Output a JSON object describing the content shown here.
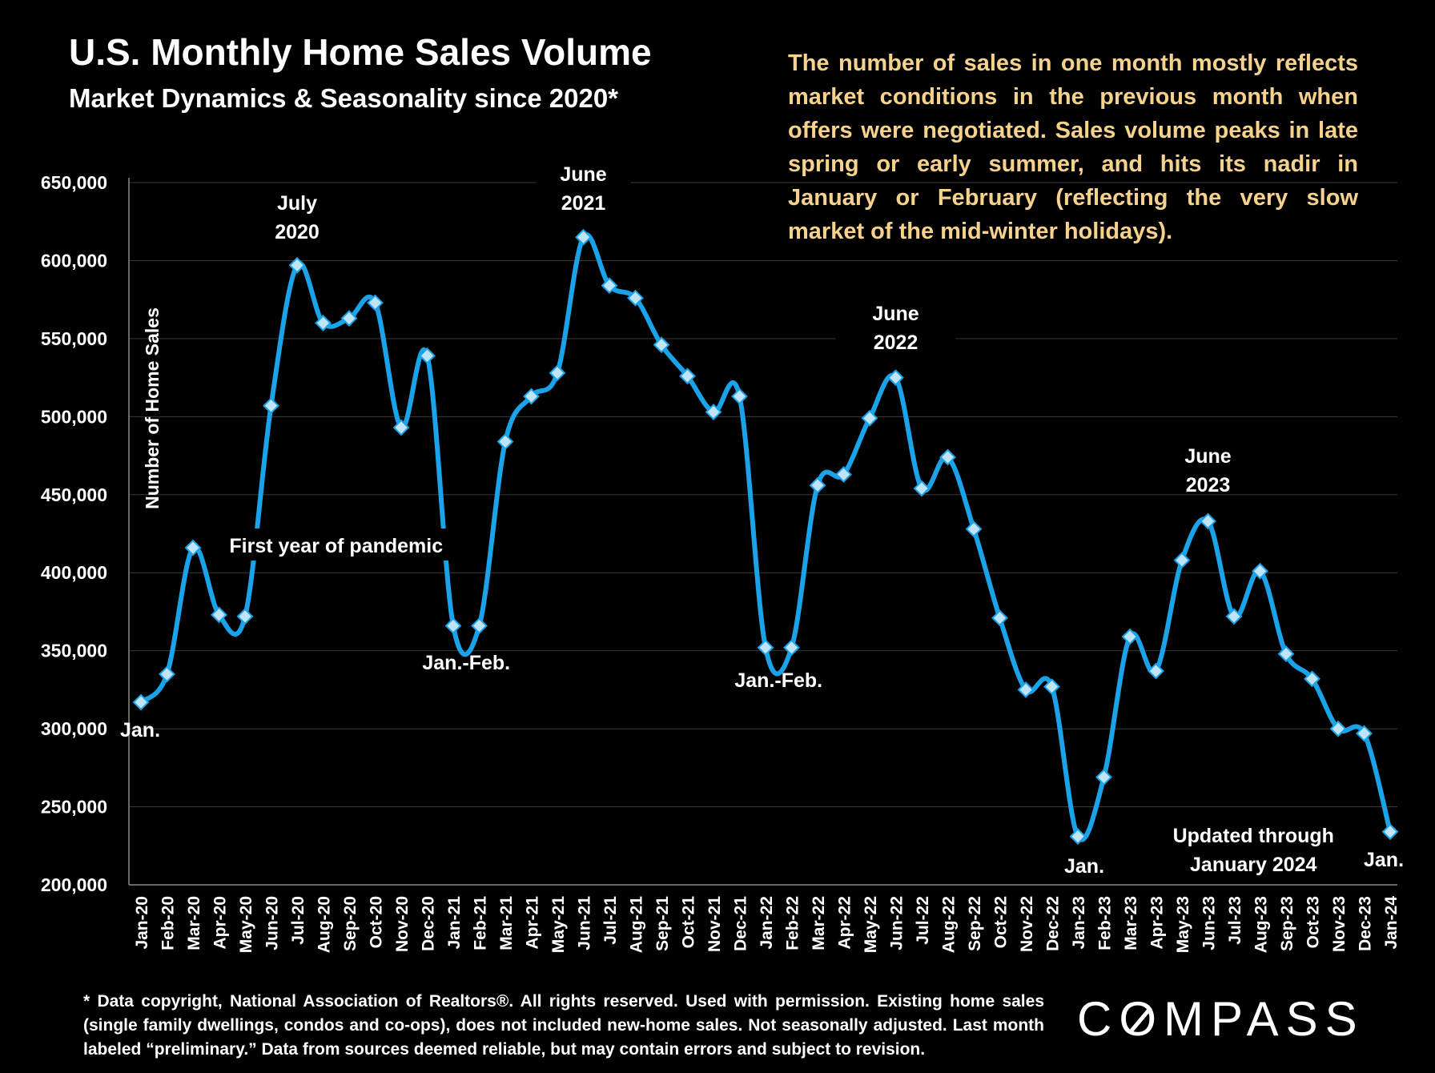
{
  "header": {
    "title": "U.S. Monthly Home Sales Volume",
    "subtitle": "Market Dynamics & Seasonality since 2020*"
  },
  "callout": {
    "text": "The number of sales in one month mostly reflects market conditions in the previous month when offers were negotiated. Sales volume peaks in late spring or early summer, and hits its nadir in January or February (reflecting the very slow market of the mid-winter holidays)."
  },
  "footnote": {
    "text": "* Data copyright, National Association of Realtors®. All rights reserved. Used with permission. Existing home sales (single family dwellings, condos and co-ops), does not included new-home sales. Not seasonally adjusted. Last month labeled “preliminary.” Data from sources deemed reliable, but may contain errors and subject to revision."
  },
  "logo": {
    "text": "COMPASS"
  },
  "colors": {
    "background": "#000000",
    "line": "#1aa3e8",
    "marker_fill": "#bfe3f7",
    "callout_text": "#f6d28c",
    "text": "#ffffff",
    "grid": "#3a3a3a"
  },
  "chart_data": {
    "type": "line",
    "title": "",
    "xlabel": "",
    "ylabel": "Number of Home Sales",
    "ylim": [
      200000,
      650000
    ],
    "yticks": [
      200000,
      250000,
      300000,
      350000,
      400000,
      450000,
      500000,
      550000,
      600000,
      650000
    ],
    "ytick_labels": [
      "200,000",
      "250,000",
      "300,000",
      "350,000",
      "400,000",
      "450,000",
      "500,000",
      "550,000",
      "600,000",
      "650,000"
    ],
    "grid": true,
    "markers": "diamond",
    "categories": [
      "Jan-20",
      "Feb-20",
      "Mar-20",
      "Apr-20",
      "May-20",
      "Jun-20",
      "Jul-20",
      "Aug-20",
      "Sep-20",
      "Oct-20",
      "Nov-20",
      "Dec-20",
      "Jan-21",
      "Feb-21",
      "Mar-21",
      "Apr-21",
      "May-21",
      "Jun-21",
      "Jul-21",
      "Aug-21",
      "Sep-21",
      "Oct-21",
      "Nov-21",
      "Dec-21",
      "Jan-22",
      "Feb-22",
      "Mar-22",
      "Apr-22",
      "May-22",
      "Jun-22",
      "Jul-22",
      "Aug-22",
      "Sep-22",
      "Oct-22",
      "Nov-22",
      "Dec-22",
      "Jan-23",
      "Feb-23",
      "Mar-23",
      "Apr-23",
      "May-23",
      "Jun-23",
      "Jul-23",
      "Aug-23",
      "Sep-23",
      "Oct-23",
      "Nov-23",
      "Dec-23",
      "Jan-24"
    ],
    "series": [
      {
        "values": [
          317000,
          335000,
          416000,
          373000,
          372000,
          507000,
          597000,
          560000,
          563000,
          573000,
          493000,
          539000,
          366000,
          366000,
          484000,
          513000,
          528000,
          615000,
          584000,
          576000,
          546000,
          526000,
          503000,
          513000,
          352000,
          352000,
          456000,
          463000,
          499000,
          525000,
          454000,
          474000,
          428000,
          371000,
          325000,
          327000,
          231000,
          269000,
          359000,
          337000,
          408000,
          433000,
          372000,
          401000,
          348000,
          332000,
          300000,
          297000,
          234000
        ]
      }
    ],
    "annotations": [
      {
        "text": "Jan.",
        "index": 0
      },
      {
        "text": "July\n2020",
        "index": 6
      },
      {
        "text": "First year of pandemic",
        "index": 7.5
      },
      {
        "text": "Jan.-Feb.",
        "index": 12.5
      },
      {
        "text": "June\n2021",
        "index": 17
      },
      {
        "text": "Jan.-Feb.",
        "index": 24.5
      },
      {
        "text": "June\n2022",
        "index": 29
      },
      {
        "text": "June\n2023",
        "index": 41
      },
      {
        "text": "Jan.",
        "index": 36
      },
      {
        "text": "Updated through\nJanuary 2024",
        "index": 42.5
      },
      {
        "text": "Jan.",
        "index": 48
      }
    ]
  }
}
